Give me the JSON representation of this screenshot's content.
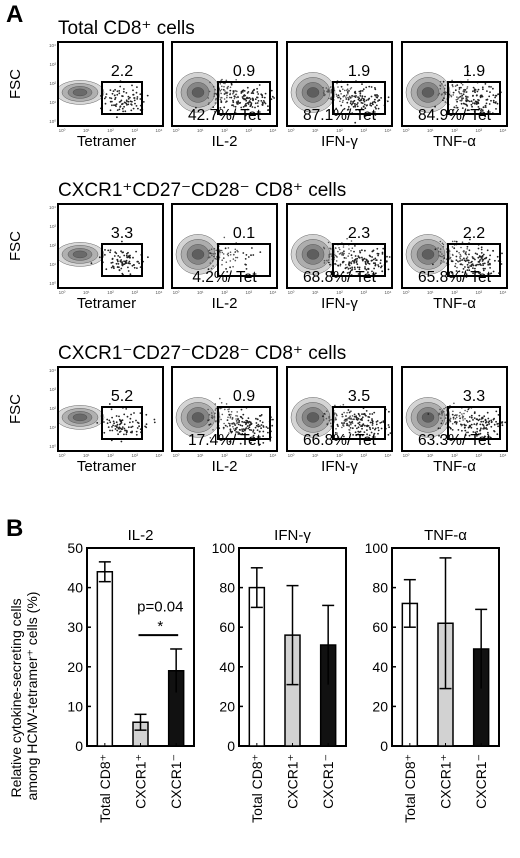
{
  "panels": {
    "a": "A",
    "b": "B"
  },
  "panel_a": {
    "fsc_label": "FSC",
    "x_labels": [
      "Tetramer",
      "IL-2",
      "IFN-γ",
      "TNF-α"
    ],
    "tiny_tick_labels": [
      "10⁰",
      "10¹",
      "10²",
      "10³",
      "10⁴"
    ],
    "rows": [
      {
        "title": "Total CD8⁺ cells",
        "tetramer_gate": "2.2",
        "gates": [
          "0.9",
          "1.9",
          "1.9"
        ],
        "percents": [
          "42.7%/ Tet",
          "87.1%/ Tet",
          "84.9%/ Tet"
        ]
      },
      {
        "title": "CXCR1⁺CD27⁻CD28⁻ CD8⁺ cells",
        "tetramer_gate": "3.3",
        "gates": [
          "0.1",
          "2.3",
          "2.2"
        ],
        "percents": [
          "4.2%/ Tet",
          "68.8%/ Tet",
          "65.8%/ Tet"
        ]
      },
      {
        "title": "CXCR1⁻CD27⁻CD28⁻ CD8⁺ cells",
        "tetramer_gate": "5.2",
        "gates": [
          "0.9",
          "3.5",
          "3.3"
        ],
        "percents": [
          "17.4%/ Tet",
          "66.8%/ Tet",
          "63.3%/ Tet"
        ]
      }
    ]
  },
  "chart_data": [
    {
      "type": "bar",
      "title": "IL-2",
      "ylabel": "Relative cytokine-secreting cells among HCMV-tetramer⁺ cells (%)",
      "categories": [
        "Total CD8⁺",
        "CXCR1⁺",
        "CXCR1⁻"
      ],
      "values": [
        44,
        6,
        19
      ],
      "errors": [
        2.5,
        2,
        5.5
      ],
      "bar_colors": [
        "#ffffff",
        "#d2d2d2",
        "#111111"
      ],
      "ylim": [
        0,
        50
      ],
      "yticks": [
        0,
        10,
        20,
        30,
        40,
        50
      ],
      "annotation": {
        "p_text": "p=0.04",
        "star": "*",
        "between": [
          1,
          2
        ]
      }
    },
    {
      "type": "bar",
      "title": "IFN-γ",
      "categories": [
        "Total CD8⁺",
        "CXCR1⁺",
        "CXCR1⁻"
      ],
      "values": [
        80,
        56,
        51
      ],
      "errors": [
        10,
        25,
        20
      ],
      "bar_colors": [
        "#ffffff",
        "#d2d2d2",
        "#111111"
      ],
      "ylim": [
        0,
        100
      ],
      "yticks": [
        0,
        20,
        40,
        60,
        80,
        100
      ]
    },
    {
      "type": "bar",
      "title": "TNF-α",
      "categories": [
        "Total CD8⁺",
        "CXCR1⁺",
        "CXCR1⁻"
      ],
      "values": [
        72,
        62,
        49
      ],
      "errors": [
        12,
        33,
        20
      ],
      "bar_colors": [
        "#ffffff",
        "#d2d2d2",
        "#111111"
      ],
      "ylim": [
        0,
        100
      ],
      "yticks": [
        0,
        20,
        40,
        60,
        80,
        100
      ]
    }
  ]
}
